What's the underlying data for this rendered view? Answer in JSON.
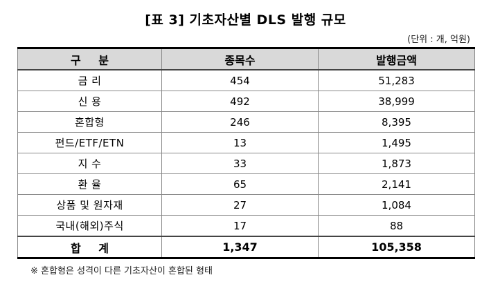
{
  "title": "[표 3] 기초자산별 DLS 발행 규모",
  "unit": "(단위 : 개, 억원)",
  "table": {
    "headers": [
      "구 분",
      "종목수",
      "발행금액"
    ],
    "rows": [
      [
        "금 리",
        "454",
        "51,283"
      ],
      [
        "신 용",
        "492",
        "38,999"
      ],
      [
        "혼합형",
        "246",
        "8,395"
      ],
      [
        "펀드/ETF/ETN",
        "13",
        "1,495"
      ],
      [
        "지 수",
        "33",
        "1,873"
      ],
      [
        "환 율",
        "65",
        "2,141"
      ],
      [
        "상품 및 원자재",
        "27",
        "1,084"
      ],
      [
        "국내(해외)주식",
        "17",
        "88"
      ]
    ],
    "total": [
      "합 계",
      "1,347",
      "105,358"
    ]
  },
  "note": "※ 혼합형은 성격이 다른 기초자산이 혼합된 형태"
}
